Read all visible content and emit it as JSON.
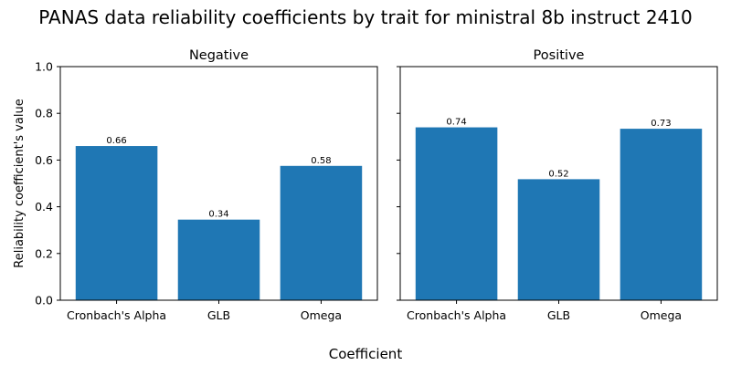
{
  "figure": {
    "title": "PANAS data reliability coefficients by trait for ministral 8b instruct 2410",
    "xlabel": "Coefficient",
    "ylabel": "Reliability coefficient's value",
    "bar_color": "#1f77b4"
  },
  "chart_data": [
    {
      "type": "bar",
      "title": "Negative",
      "categories": [
        "Cronbach's Alpha",
        "GLB",
        "Omega"
      ],
      "values": [
        0.66,
        0.345,
        0.575
      ],
      "data_labels": [
        "0.66",
        "0.34",
        "0.58"
      ],
      "ylim": [
        0,
        1.0
      ],
      "yticks": [
        0.0,
        0.2,
        0.4,
        0.6,
        0.8,
        1.0
      ],
      "ytick_labels": [
        "0.0",
        "0.2",
        "0.4",
        "0.6",
        "0.8",
        "1.0"
      ],
      "grid": false
    },
    {
      "type": "bar",
      "title": "Positive",
      "categories": [
        "Cronbach's Alpha",
        "GLB",
        "Omega"
      ],
      "values": [
        0.74,
        0.518,
        0.734
      ],
      "data_labels": [
        "0.74",
        "0.52",
        "0.73"
      ],
      "ylim": [
        0,
        1.0
      ],
      "yticks": [
        0.0,
        0.2,
        0.4,
        0.6,
        0.8,
        1.0
      ],
      "grid": false
    }
  ]
}
